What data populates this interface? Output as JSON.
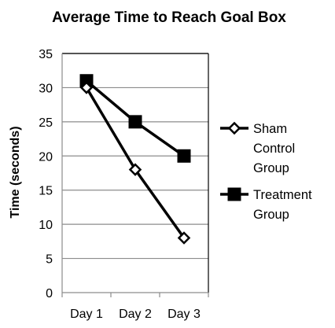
{
  "chart_data": {
    "type": "line",
    "title": "Average Time to Reach Goal Box",
    "ylabel": "Time (seconds)",
    "xlabel": "",
    "categories": [
      "Day 1",
      "Day 2",
      "Day 3"
    ],
    "ylim": [
      0,
      35
    ],
    "yticks": [
      "0",
      "5",
      "10",
      "15",
      "20",
      "25",
      "30",
      "35"
    ],
    "grid": true,
    "legend_position": "right",
    "series": [
      {
        "name": "Sham Control Group",
        "legend_lines": [
          "Sham",
          "Control",
          "Group"
        ],
        "values": [
          30,
          18,
          8
        ],
        "marker": "diamond-open",
        "color": "#000000"
      },
      {
        "name": "Treatment Group",
        "legend_lines": [
          "Treatment",
          "Group"
        ],
        "values": [
          31,
          25,
          20
        ],
        "marker": "square-filled",
        "color": "#000000"
      }
    ]
  }
}
